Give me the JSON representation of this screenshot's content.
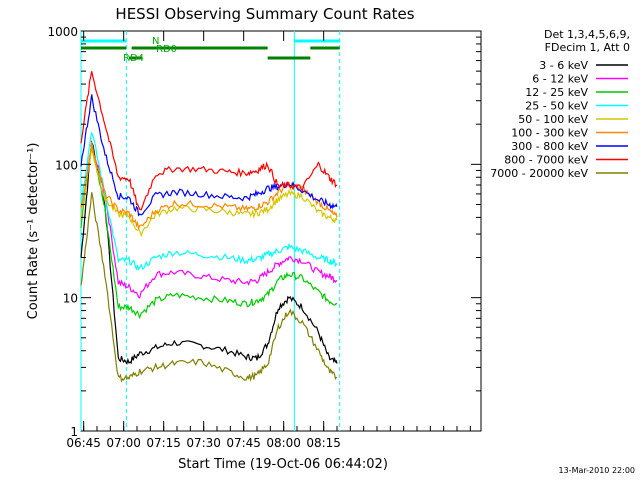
{
  "chart_data": {
    "type": "line",
    "title": "HESSI Observing Summary Count Rates",
    "xlabel": "Start Time (19-Oct-06 06:44:02)",
    "ylabel": "Count Rate (s⁻¹ detector⁻¹)",
    "yscale": "log",
    "ylim": [
      1,
      1000
    ],
    "xlim_min": [
      0,
      150
    ],
    "x_tick_labels": [
      "06:45",
      "07:00",
      "07:15",
      "07:30",
      "07:45",
      "08:00",
      "08:15"
    ],
    "x_tick_min": [
      1,
      16,
      31,
      46,
      61,
      76,
      91
    ],
    "y_tick_labels": [
      "1",
      "10",
      "100",
      "1000"
    ],
    "y_tick_values": [
      1,
      10,
      100,
      1000
    ],
    "legend_header": [
      "Det 1,3,4,5,6,9,",
      "FDecim 1, Att 0"
    ],
    "legend_position": "top-right outside",
    "series": [
      {
        "name": "3 - 6 keV",
        "color": "#000000",
        "values": [
          20,
          150,
          50,
          3.5,
          3.3,
          3.8,
          4.2,
          4.6,
          4.4,
          4.0,
          3.6,
          3.5,
          4.5,
          8.5,
          10,
          8.5,
          5.5,
          3.5,
          3.2
        ]
      },
      {
        "name": "6 - 12 keV",
        "color": "#ff00ff",
        "values": [
          40,
          140,
          60,
          13,
          12,
          10.5,
          15,
          15.5,
          14.5,
          13.5,
          13,
          13.5,
          15.5,
          18,
          20,
          19,
          15.5,
          14.5,
          13.5
        ]
      },
      {
        "name": "12 - 25 keV",
        "color": "#00cc00",
        "values": [
          35,
          150,
          45,
          8.5,
          8.5,
          7.5,
          9.5,
          10.5,
          10,
          9.5,
          9,
          9.5,
          10.5,
          13.5,
          15,
          14,
          11,
          9.5,
          9
        ]
      },
      {
        "name": "25 - 50 keV",
        "color": "#00ffff",
        "values": [
          50,
          180,
          60,
          19,
          19,
          16.5,
          20,
          22,
          21,
          20,
          19,
          19.5,
          21,
          22.5,
          24,
          22.5,
          20,
          19,
          18
        ]
      },
      {
        "name": "50 - 100 keV",
        "color": "#d4c800",
        "values": [
          40,
          130,
          55,
          42,
          41,
          30,
          42,
          47,
          46,
          44,
          42,
          43,
          46,
          55,
          60,
          58,
          44,
          40,
          38
        ]
      },
      {
        "name": "100 - 300 keV",
        "color": "#ff8800",
        "values": [
          45,
          140,
          60,
          45,
          43,
          33,
          45,
          51,
          50,
          48,
          46,
          48,
          52,
          62,
          70,
          66,
          52,
          45,
          40
        ]
      },
      {
        "name": "300 - 800 keV",
        "color": "#0000ff",
        "values": [
          100,
          320,
          120,
          58,
          56,
          42,
          58,
          62,
          60,
          57,
          56,
          60,
          66,
          68,
          72,
          64,
          54,
          50,
          48
        ]
      },
      {
        "name": "800 - 7000 keV",
        "color": "#ff0000",
        "values": [
          150,
          500,
          200,
          80,
          78,
          44,
          85,
          93,
          92,
          88,
          86,
          90,
          100,
          68,
          70,
          66,
          100,
          80,
          70
        ]
      },
      {
        "name": "7000 - 20000 keV",
        "color": "#808000",
        "values": [
          12,
          60,
          15,
          2.5,
          2.5,
          2.8,
          3,
          3.2,
          3.3,
          2.8,
          2.5,
          2.6,
          3.2,
          6,
          8,
          6.5,
          4,
          2.8,
          2.5
        ]
      }
    ],
    "x_min": [
      0,
      4,
      9,
      14,
      18,
      22,
      28,
      35,
      45,
      55,
      62,
      66,
      70,
      74,
      78,
      83,
      89,
      93,
      96
    ],
    "annotations": [
      {
        "label": "N",
        "color": "#00aa00"
      },
      {
        "label": "RD0",
        "color": "#00aa00"
      },
      {
        "label": "RD4",
        "color": "#00aa00"
      }
    ],
    "vertical_lines": [
      {
        "x": 0,
        "color": "#00ffff",
        "style": "solid"
      },
      {
        "x": 17,
        "color": "#00ffff",
        "style": "dashed"
      },
      {
        "x": 80,
        "color": "#00ffff",
        "style": "solid"
      },
      {
        "x": 97,
        "color": "#00ffff",
        "style": "dashed"
      }
    ],
    "top_bars": [
      {
        "row": "cyan",
        "color": "#00ffff",
        "segments": [
          [
            0,
            17
          ],
          [
            80,
            97
          ]
        ]
      },
      {
        "row": "green1",
        "color": "#008000",
        "segments": [
          [
            0,
            17
          ],
          [
            19,
            70
          ],
          [
            86,
            97
          ]
        ]
      },
      {
        "row": "green2",
        "color": "#008000",
        "segments": [
          [
            18,
            23
          ],
          [
            70,
            86
          ]
        ]
      }
    ]
  },
  "footer": {
    "timestamp": "13-Mar-2010 22:00"
  }
}
